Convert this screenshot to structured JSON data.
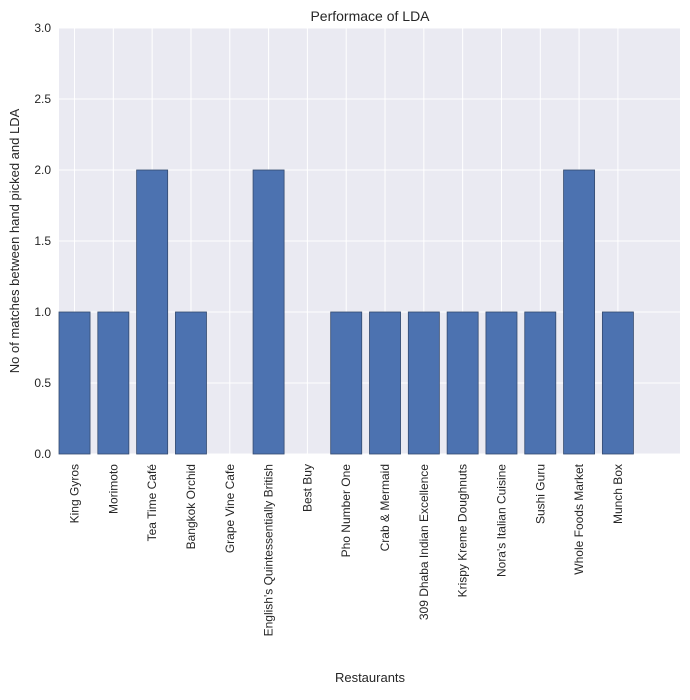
{
  "chart_data": {
    "type": "bar",
    "title": "Performace of LDA",
    "xlabel": "Restaurants",
    "ylabel": "No of matches between hand picked and LDA",
    "categories": [
      "King Gyros",
      "Morimoto",
      "Tea Time Café",
      "Bangkok Orchid",
      "Grape Vine Cafe",
      "English's Quintessentially British",
      "Best Buy",
      "Pho Number One",
      "Crab & Mermaid",
      "309 Dhaba Indian Excellence",
      "Krispy Kreme Doughnuts",
      "Nora's Italian Cuisine",
      "Sushi Guru",
      "Whole Foods Market",
      "Munch Box"
    ],
    "values": [
      1,
      1,
      2,
      1,
      0,
      2,
      0,
      1,
      1,
      1,
      1,
      1,
      1,
      2,
      1
    ],
    "ylim": [
      0,
      3
    ],
    "yticks": [
      "0.0",
      "0.5",
      "1.0",
      "1.5",
      "2.0",
      "2.5",
      "3.0"
    ],
    "grid": true,
    "legend": "none",
    "colors": {
      "bar": "#4c72b0",
      "bar_edge": "#344a6f",
      "plot_background": "#eaeaf2",
      "grid": "#ffffff"
    }
  }
}
